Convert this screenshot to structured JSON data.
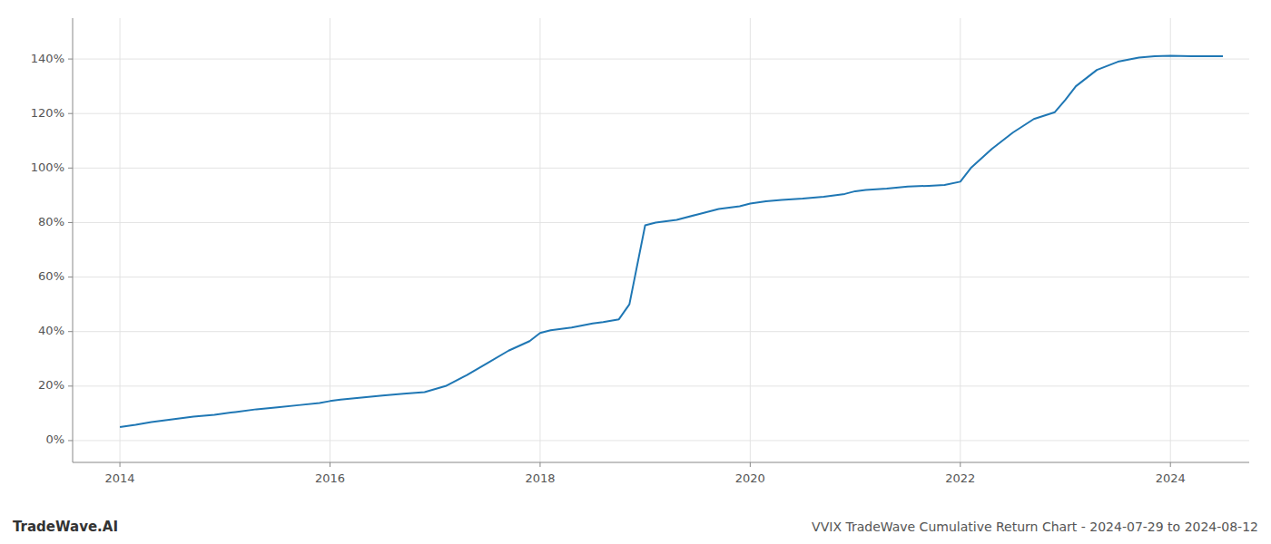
{
  "chart_data": {
    "type": "line",
    "title": "VVIX TradeWave Cumulative Return Chart - 2024-07-29 to 2024-08-12",
    "annotations": [
      "TradeWave.AI"
    ],
    "color": "#1f77b4",
    "grid": true,
    "x": [
      2014.0,
      2014.15,
      2014.3,
      2014.5,
      2014.7,
      2014.9,
      2015.1,
      2015.3,
      2015.5,
      2015.7,
      2015.9,
      2016.0,
      2016.1,
      2016.3,
      2016.5,
      2016.7,
      2016.9,
      2017.1,
      2017.3,
      2017.5,
      2017.7,
      2017.9,
      2018.0,
      2018.1,
      2018.3,
      2018.5,
      2018.6,
      2018.75,
      2018.85,
      2019.0,
      2019.1,
      2019.3,
      2019.5,
      2019.7,
      2019.9,
      2020.0,
      2020.15,
      2020.3,
      2020.5,
      2020.7,
      2020.9,
      2021.0,
      2021.1,
      2021.3,
      2021.5,
      2021.7,
      2021.85,
      2022.0,
      2022.1,
      2022.3,
      2022.5,
      2022.7,
      2022.9,
      2023.0,
      2023.1,
      2023.3,
      2023.5,
      2023.7,
      2023.85,
      2024.0,
      2024.2,
      2024.5
    ],
    "values": [
      5.0,
      5.8,
      6.8,
      7.8,
      8.8,
      9.5,
      10.5,
      11.5,
      12.2,
      13.0,
      13.8,
      14.5,
      15.0,
      15.8,
      16.5,
      17.2,
      17.8,
      20.0,
      24.0,
      28.5,
      33.0,
      36.5,
      39.5,
      40.5,
      41.5,
      43.0,
      43.5,
      44.5,
      50.0,
      79.0,
      80.0,
      81.0,
      83.0,
      85.0,
      86.0,
      87.0,
      87.8,
      88.3,
      88.8,
      89.5,
      90.5,
      91.5,
      92.0,
      92.5,
      93.2,
      93.5,
      93.8,
      95.0,
      100.0,
      107.0,
      113.0,
      118.0,
      120.5,
      125.0,
      130.0,
      136.0,
      139.0,
      140.5,
      141.0,
      141.2,
      141.0,
      141.0
    ],
    "xlim": [
      2013.55,
      2024.75
    ],
    "ylim": [
      -8,
      155
    ],
    "xticks": [
      2014,
      2016,
      2018,
      2020,
      2022,
      2024
    ],
    "yticks": [
      {
        "value": 0,
        "label": "0%"
      },
      {
        "value": 20,
        "label": "20%"
      },
      {
        "value": 40,
        "label": "40%"
      },
      {
        "value": 60,
        "label": "60%"
      },
      {
        "value": 80,
        "label": "80%"
      },
      {
        "value": 100,
        "label": "100%"
      },
      {
        "value": 120,
        "label": "120%"
      },
      {
        "value": 140,
        "label": "140%"
      }
    ]
  }
}
